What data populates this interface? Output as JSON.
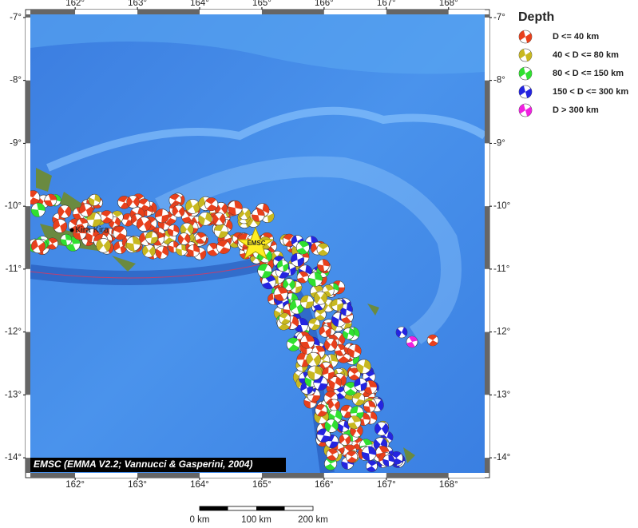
{
  "map": {
    "xticks": [
      {
        "value": 162,
        "label": "162°"
      },
      {
        "value": 163,
        "label": "163°"
      },
      {
        "value": 164,
        "label": "164°"
      },
      {
        "value": 165,
        "label": "165°"
      },
      {
        "value": 166,
        "label": "166°"
      },
      {
        "value": 167,
        "label": "167°"
      },
      {
        "value": 168,
        "label": "168°"
      }
    ],
    "yticks": [
      {
        "value": -7,
        "label": "-7°"
      },
      {
        "value": -8,
        "label": "-8°"
      },
      {
        "value": -9,
        "label": "-9°"
      },
      {
        "value": -10,
        "label": "-10°"
      },
      {
        "value": -11,
        "label": "-11°"
      },
      {
        "value": -12,
        "label": "-12°"
      },
      {
        "value": -13,
        "label": "-13°"
      },
      {
        "value": -14,
        "label": "-14°"
      }
    ],
    "xlim": [
      161.28,
      168.58
    ],
    "ylim": [
      -14.24,
      -6.95
    ],
    "places": [
      "Kira Kira",
      "EMSC"
    ],
    "attribution": "EMSC (EMMA V2.2; Vannucci & Gasperini, 2004)",
    "scale_bar": [
      "0 km",
      "100 km",
      "200 km"
    ]
  },
  "legend": {
    "title": "Depth",
    "items": [
      {
        "label": "D <= 40 km",
        "color": "#e8401c"
      },
      {
        "label": "40 < D <= 80 km",
        "color": "#c8b820"
      },
      {
        "label": "80 < D <= 150 km",
        "color": "#30e030"
      },
      {
        "label": "150 < D <= 300 km",
        "color": "#2424e0"
      },
      {
        "label": "D > 300 km",
        "color": "#f020e0"
      }
    ]
  }
}
